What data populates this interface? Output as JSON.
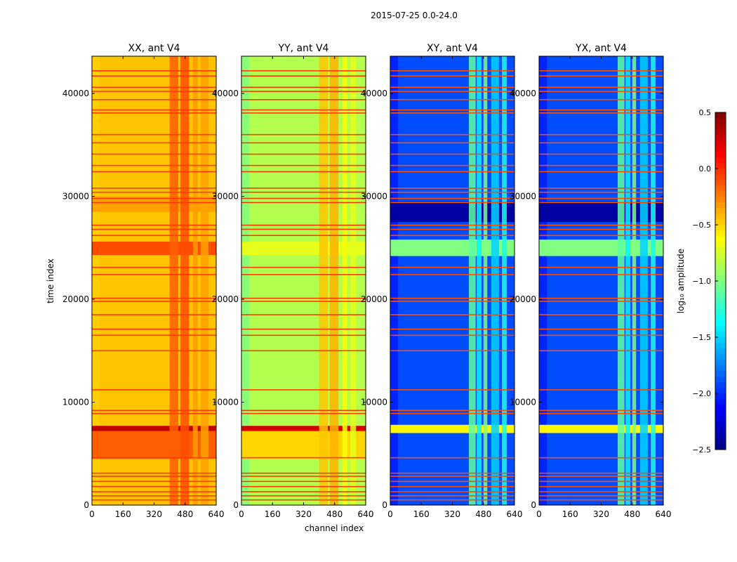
{
  "figure_title": "2015-07-25 0.0-24.0",
  "xlabel": "channel index",
  "ylabel": "time index",
  "colorbar": {
    "label": "log₁₀ amplitude",
    "vmin": -2.5,
    "vmax": 0.5,
    "ticks": [
      -2.5,
      -2.0,
      -1.5,
      -1.0,
      -0.5,
      0.0,
      0.5
    ],
    "tick_labels": [
      "−2.5",
      "−2.0",
      "−1.5",
      "−1.0",
      "−0.5",
      "0.0",
      "0.5"
    ],
    "colormap": "jet"
  },
  "chart_data": [
    {
      "type": "heatmap",
      "title": "XX, ant V4",
      "xlim": [
        0,
        640
      ],
      "ylim": [
        0,
        43620
      ],
      "xticks": [
        0,
        160,
        320,
        480,
        640
      ],
      "yticks": [
        0,
        10000,
        20000,
        30000,
        40000
      ],
      "base_value": -0.45,
      "edge_value": -0.5,
      "channel_features": [
        {
          "range": [
            400,
            445
          ],
          "delta": 0.3
        },
        {
          "range": [
            455,
            500
          ],
          "delta": 0.35
        },
        {
          "range": [
            520,
            545
          ],
          "delta": 0.12
        },
        {
          "range": [
            560,
            600
          ],
          "delta": 0.1
        }
      ],
      "time_bands": [
        {
          "range": [
            4500,
            7200
          ],
          "value": -0.15
        },
        {
          "range": [
            7200,
            7700
          ],
          "value": 0.3
        },
        {
          "range": [
            24300,
            25600
          ],
          "value": -0.1
        },
        {
          "range": [
            28500,
            30000
          ],
          "value": -0.35
        }
      ],
      "line_value": -0.05
    },
    {
      "type": "heatmap",
      "title": "YY, ant V4",
      "xlim": [
        0,
        640
      ],
      "ylim": [
        0,
        43620
      ],
      "xticks": [
        0,
        160,
        320,
        480,
        640
      ],
      "yticks": [
        0,
        10000,
        20000,
        30000,
        40000
      ],
      "base_value": -0.85,
      "edge_value": -1.05,
      "channel_features": [
        {
          "range": [
            400,
            445
          ],
          "delta": 0.4
        },
        {
          "range": [
            455,
            500
          ],
          "delta": 0.45
        },
        {
          "range": [
            520,
            545
          ],
          "delta": 0.2
        },
        {
          "range": [
            560,
            590
          ],
          "delta": 0.15
        }
      ],
      "time_bands": [
        {
          "range": [
            4500,
            7200
          ],
          "value": -0.5
        },
        {
          "range": [
            7200,
            7700
          ],
          "value": 0.25
        },
        {
          "range": [
            24300,
            25600
          ],
          "value": -0.7
        }
      ],
      "line_value": -0.05
    },
    {
      "type": "heatmap",
      "title": "XY, ant V4",
      "xlim": [
        0,
        640
      ],
      "ylim": [
        0,
        43620
      ],
      "xticks": [
        0,
        160,
        320,
        480,
        640
      ],
      "yticks": [
        0,
        10000,
        20000,
        30000,
        40000
      ],
      "base_value": -1.9,
      "edge_value": -2.1,
      "channel_features": [
        {
          "range": [
            405,
            440
          ],
          "delta": 0.8
        },
        {
          "range": [
            445,
            470
          ],
          "delta": 0.5
        },
        {
          "range": [
            480,
            500
          ],
          "delta": 0.9
        },
        {
          "range": [
            520,
            560
          ],
          "delta": 0.4
        },
        {
          "range": [
            575,
            600
          ],
          "delta": 0.6
        }
      ],
      "time_bands": [
        {
          "range": [
            24200,
            25800
          ],
          "value": -1.0
        },
        {
          "range": [
            27500,
            29500
          ],
          "value": -2.4
        },
        {
          "range": [
            7000,
            7800
          ],
          "value": -0.6
        }
      ],
      "line_value": -0.1
    },
    {
      "type": "heatmap",
      "title": "YX, ant V4",
      "xlim": [
        0,
        640
      ],
      "ylim": [
        0,
        43620
      ],
      "xticks": [
        0,
        160,
        320,
        480,
        640
      ],
      "yticks": [
        0,
        10000,
        20000,
        30000,
        40000
      ],
      "base_value": -1.9,
      "edge_value": -2.1,
      "channel_features": [
        {
          "range": [
            405,
            440
          ],
          "delta": 0.8
        },
        {
          "range": [
            445,
            470
          ],
          "delta": 0.5
        },
        {
          "range": [
            480,
            500
          ],
          "delta": 0.9
        },
        {
          "range": [
            520,
            560
          ],
          "delta": 0.4
        },
        {
          "range": [
            575,
            600
          ],
          "delta": 0.6
        }
      ],
      "time_bands": [
        {
          "range": [
            24200,
            25800
          ],
          "value": -1.0
        },
        {
          "range": [
            27500,
            29500
          ],
          "value": -2.4
        },
        {
          "range": [
            7000,
            7800
          ],
          "value": -0.6
        }
      ],
      "line_value": -0.1
    }
  ],
  "flagged_times": [
    500,
    900,
    1300,
    1800,
    2300,
    2800,
    3100,
    4600,
    8900,
    9200,
    11200,
    15000,
    16500,
    17100,
    18500,
    19800,
    20100,
    22400,
    23100,
    26200,
    26800,
    27200,
    29400,
    29800,
    30400,
    30800,
    32400,
    33000,
    34100,
    35200,
    36000,
    38100,
    38400,
    39400,
    40200,
    40600,
    41700,
    42200
  ]
}
